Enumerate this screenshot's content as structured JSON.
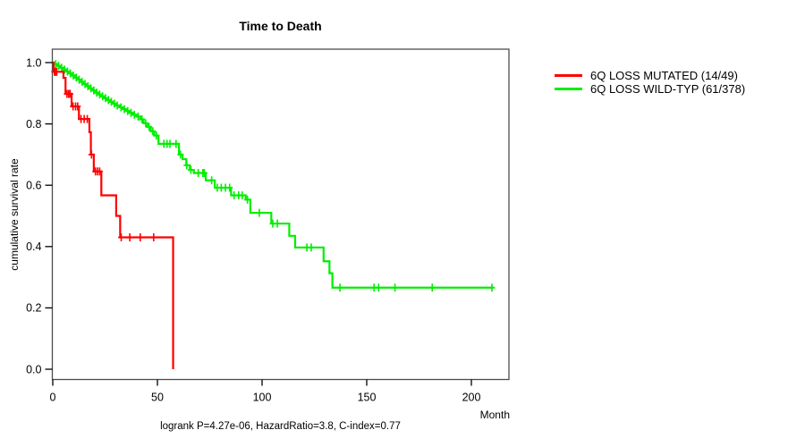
{
  "chart_data": {
    "type": "line",
    "chart_style": "kaplan-meier-step",
    "title": "Time to Death",
    "xlabel": "Month",
    "ylabel": "cumulative survival rate",
    "xlim": [
      0,
      218
    ],
    "ylim": [
      0.0,
      1.0
    ],
    "x_ticks": [
      "0",
      "50",
      "100",
      "150",
      "200"
    ],
    "y_ticks": [
      "0.0",
      "0.2",
      "0.4",
      "0.6",
      "0.8",
      "1.0"
    ],
    "grid": false,
    "legend_position": "right-outside",
    "caption": "logrank P=4.27e-06, HazardRatio=3.8, C-index=0.77",
    "stats": {
      "logrank_p": "4.27e-06",
      "hazard_ratio": "3.8",
      "c_index": "0.77"
    },
    "series": [
      {
        "name": "6Q LOSS MUTATED (14/49)",
        "events": "14/49",
        "color": "#ff0000",
        "step_points": [
          [
            0,
            1.0
          ],
          [
            0.4,
            0.97
          ],
          [
            5.1,
            0.95
          ],
          [
            6.1,
            0.898
          ],
          [
            9.0,
            0.857
          ],
          [
            12.5,
            0.816
          ],
          [
            17.5,
            0.773
          ],
          [
            18.2,
            0.7
          ],
          [
            19.6,
            0.645
          ],
          [
            23.2,
            0.567
          ],
          [
            30.3,
            0.5
          ],
          [
            32.2,
            0.43
          ],
          [
            57.5,
            0.0
          ]
        ],
        "censor_times": [
          0.8,
          1.3,
          1.9,
          6.8,
          7.6,
          8.3,
          9.7,
          10.9,
          11.9,
          13.5,
          15.0,
          16.5,
          18.5,
          20.4,
          21.4,
          22.4,
          32.7,
          36.8,
          41.8,
          48.2
        ]
      },
      {
        "name": "6Q LOSS WILD-TYP (61/378)",
        "events": "61/378",
        "color": "#00ee00",
        "step_points": [
          [
            0,
            1.0
          ],
          [
            0.9,
            0.995
          ],
          [
            2.3,
            0.989
          ],
          [
            3.7,
            0.983
          ],
          [
            5.1,
            0.977
          ],
          [
            6.5,
            0.971
          ],
          [
            7.9,
            0.965
          ],
          [
            9.3,
            0.958
          ],
          [
            10.7,
            0.951
          ],
          [
            12.1,
            0.944
          ],
          [
            13.5,
            0.937
          ],
          [
            14.9,
            0.93
          ],
          [
            16.3,
            0.923
          ],
          [
            17.7,
            0.916
          ],
          [
            19.1,
            0.909
          ],
          [
            20.5,
            0.902
          ],
          [
            21.9,
            0.896
          ],
          [
            23.3,
            0.89
          ],
          [
            24.7,
            0.884
          ],
          [
            26.1,
            0.878
          ],
          [
            27.5,
            0.872
          ],
          [
            28.9,
            0.866
          ],
          [
            30.3,
            0.86
          ],
          [
            31.9,
            0.854
          ],
          [
            33.5,
            0.848
          ],
          [
            35.1,
            0.842
          ],
          [
            36.7,
            0.836
          ],
          [
            38.3,
            0.83
          ],
          [
            40.2,
            0.824
          ],
          [
            41.8,
            0.815
          ],
          [
            43.4,
            0.802
          ],
          [
            45.2,
            0.79
          ],
          [
            46.8,
            0.776
          ],
          [
            48.5,
            0.762
          ],
          [
            50.5,
            0.735
          ],
          [
            60.3,
            0.7
          ],
          [
            62.0,
            0.685
          ],
          [
            63.8,
            0.665
          ],
          [
            65.5,
            0.65
          ],
          [
            67.4,
            0.64
          ],
          [
            73.1,
            0.616
          ],
          [
            77.4,
            0.592
          ],
          [
            85.2,
            0.567
          ],
          [
            92.2,
            0.553
          ],
          [
            94.4,
            0.51
          ],
          [
            104.4,
            0.475
          ],
          [
            113.0,
            0.435
          ],
          [
            115.8,
            0.397
          ],
          [
            129.4,
            0.352
          ],
          [
            132.2,
            0.313
          ],
          [
            133.6,
            0.266
          ],
          [
            210.6,
            0.266
          ]
        ],
        "censor_times": [
          1.4,
          2.8,
          4.2,
          5.6,
          7.0,
          8.4,
          9.8,
          11.2,
          12.6,
          14.0,
          15.4,
          16.8,
          18.2,
          19.6,
          21.0,
          22.4,
          23.8,
          25.2,
          26.6,
          28.0,
          29.4,
          30.8,
          32.6,
          34.2,
          35.8,
          37.4,
          39.0,
          40.8,
          42.6,
          44.4,
          46.0,
          47.8,
          49.5,
          53.1,
          54.6,
          56.0,
          58.9,
          61.0,
          64.0,
          66.0,
          69.5,
          71.7,
          72.4,
          75.9,
          78.6,
          80.5,
          82.5,
          84.5,
          86.6,
          88.8,
          90.5,
          93.0,
          98.7,
          105.1,
          107.3,
          121.4,
          123.5,
          137.2,
          153.5,
          155.7,
          163.5,
          181.3,
          209.8
        ]
      }
    ]
  }
}
